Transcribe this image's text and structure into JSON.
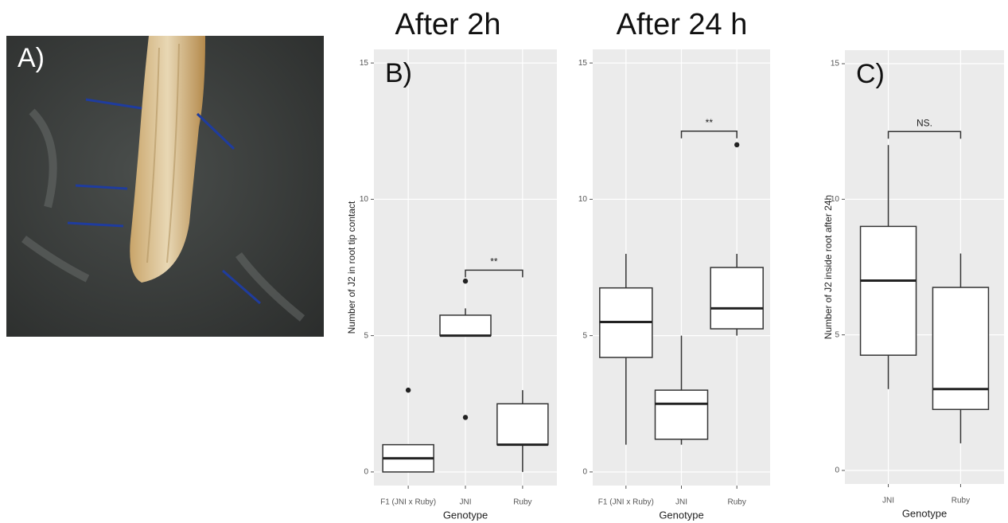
{
  "photo": {
    "label": "A)"
  },
  "chart_data": [
    {
      "type": "boxplot",
      "title": "After 2h",
      "annotation": "B)",
      "y_label": "Number of J2 in root tip contact",
      "x_label": "Genotype",
      "categories": [
        "F1 (JNI x Ruby)",
        "JNI",
        "Ruby"
      ],
      "boxes": [
        {
          "low": 0,
          "q1": 0,
          "median": 0.5,
          "q3": 1,
          "high": 1,
          "outliers": [
            3
          ]
        },
        {
          "low": 5,
          "q1": 5,
          "median": 5,
          "q3": 5.75,
          "high": 6,
          "outliers": [
            7,
            2
          ]
        },
        {
          "low": 0,
          "q1": 1,
          "median": 1,
          "q3": 2.5,
          "high": 3,
          "outliers": []
        }
      ],
      "brackets": [
        {
          "between": [
            "JNI",
            "Ruby"
          ],
          "y": 7.4,
          "label": "**"
        }
      ],
      "ylim": [
        -0.5,
        15.5
      ],
      "yticks": [
        0,
        5,
        10,
        15
      ],
      "grid": true
    },
    {
      "type": "boxplot",
      "title": "After 24 h",
      "x_label": "Genotype",
      "categories": [
        "F1 (JNI x Ruby)",
        "JNI",
        "Ruby"
      ],
      "boxes": [
        {
          "low": 1,
          "q1": 4.2,
          "median": 5.5,
          "q3": 6.75,
          "high": 8,
          "outliers": []
        },
        {
          "low": 1,
          "q1": 1.2,
          "median": 2.5,
          "q3": 3,
          "high": 5,
          "outliers": []
        },
        {
          "low": 5,
          "q1": 5.25,
          "median": 6,
          "q3": 7.5,
          "high": 8,
          "outliers": [
            12
          ]
        }
      ],
      "brackets": [
        {
          "between": [
            "JNI",
            "Ruby"
          ],
          "y": 12.5,
          "label": "**"
        }
      ],
      "ylim": [
        -0.5,
        15.5
      ],
      "yticks": [
        0,
        5,
        10,
        15
      ],
      "grid": true
    },
    {
      "type": "boxplot",
      "annotation": "C)",
      "y_label": "Number of J2 inside root after 24h",
      "x_label": "Genotype",
      "categories": [
        "JNI",
        "Ruby"
      ],
      "boxes": [
        {
          "low": 3,
          "q1": 4.25,
          "median": 7,
          "q3": 9,
          "high": 12,
          "outliers": []
        },
        {
          "low": 1,
          "q1": 2.25,
          "median": 3,
          "q3": 6.75,
          "high": 8,
          "outliers": []
        }
      ],
      "brackets": [
        {
          "between": [
            "JNI",
            "Ruby"
          ],
          "y": 12.5,
          "label": "NS."
        }
      ],
      "ylim": [
        -0.5,
        15.5
      ],
      "yticks": [
        0,
        5,
        10,
        15
      ],
      "grid": true
    }
  ]
}
